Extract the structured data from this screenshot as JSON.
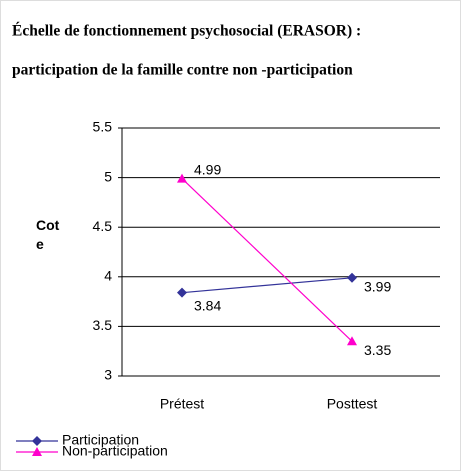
{
  "chart_data": {
    "type": "line",
    "title": [
      "Échelle de fonctionnement psychosocial (ERASOR) :",
      "participation de la famille contre non -participation"
    ],
    "y_label": "Cote",
    "categories": [
      "Prétest",
      "Posttest"
    ],
    "series": [
      {
        "name": "Participation",
        "color": "#333399",
        "marker": "diamond",
        "values": [
          3.84,
          3.99
        ]
      },
      {
        "name": "Non-participation",
        "color": "#ff00cc",
        "marker": "triangle",
        "values": [
          4.99,
          3.35
        ]
      }
    ],
    "ylim": [
      3,
      5.5
    ],
    "yticks": [
      3,
      3.5,
      4,
      4.5,
      5,
      5.5
    ],
    "grid": true,
    "legend": "bottom-left"
  }
}
